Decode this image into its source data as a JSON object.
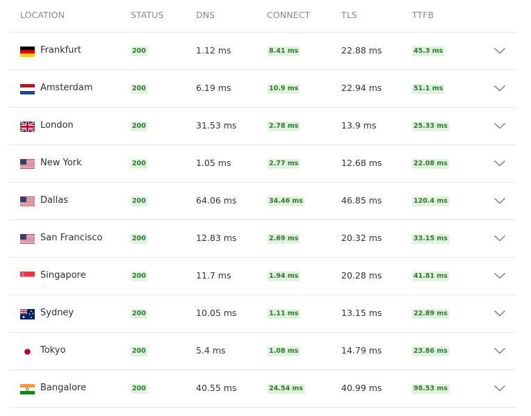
{
  "headers": {
    "location": "LOCATION",
    "status": "STATUS",
    "dns": "DNS",
    "connect": "CONNECT",
    "tls": "TLS",
    "ttfb": "TTFB"
  },
  "colors": {
    "badge_bg": "#dff2de",
    "badge_text": "#2f7a2f",
    "divider": "#e8e8e8",
    "header_text": "#8a8a8a"
  },
  "rows": [
    {
      "flag": "de-flag-icon",
      "city": "Frankfurt",
      "status": "200",
      "dns": "1.12 ms",
      "connect": "8.41 ms",
      "tls": "22.88 ms",
      "ttfb": "45.3 ms"
    },
    {
      "flag": "nl-flag-icon",
      "city": "Amsterdam",
      "status": "200",
      "dns": "6.19 ms",
      "connect": "10.9 ms",
      "tls": "22.94 ms",
      "ttfb": "51.1 ms"
    },
    {
      "flag": "uk-flag-icon",
      "city": "London",
      "status": "200",
      "dns": "31.53 ms",
      "connect": "2.78 ms",
      "tls": "13.9 ms",
      "ttfb": "25.33 ms"
    },
    {
      "flag": "us-flag-icon",
      "city": "New York",
      "status": "200",
      "dns": "1.05 ms",
      "connect": "2.77 ms",
      "tls": "12.68 ms",
      "ttfb": "22.08 ms"
    },
    {
      "flag": "us-flag-icon",
      "city": "Dallas",
      "status": "200",
      "dns": "64.06 ms",
      "connect": "34.46 ms",
      "tls": "46.85 ms",
      "ttfb": "120.4 ms"
    },
    {
      "flag": "us-flag-icon",
      "city": "San Francisco",
      "status": "200",
      "dns": "12.83 ms",
      "connect": "2.69 ms",
      "tls": "20.32 ms",
      "ttfb": "33.15 ms"
    },
    {
      "flag": "sg-flag-icon",
      "city": "Singapore",
      "status": "200",
      "dns": "11.7 ms",
      "connect": "1.94 ms",
      "tls": "20.28 ms",
      "ttfb": "41.81 ms"
    },
    {
      "flag": "au-flag-icon",
      "city": "Sydney",
      "status": "200",
      "dns": "10.05 ms",
      "connect": "1.11 ms",
      "tls": "13.15 ms",
      "ttfb": "22.89 ms"
    },
    {
      "flag": "jp-flag-icon",
      "city": "Tokyo",
      "status": "200",
      "dns": "5.4 ms",
      "connect": "1.08 ms",
      "tls": "14.79 ms",
      "ttfb": "23.86 ms"
    },
    {
      "flag": "in-flag-icon",
      "city": "Bangalore",
      "status": "200",
      "dns": "40.55 ms",
      "connect": "24.54 ms",
      "tls": "40.99 ms",
      "ttfb": "98.53 ms"
    }
  ]
}
